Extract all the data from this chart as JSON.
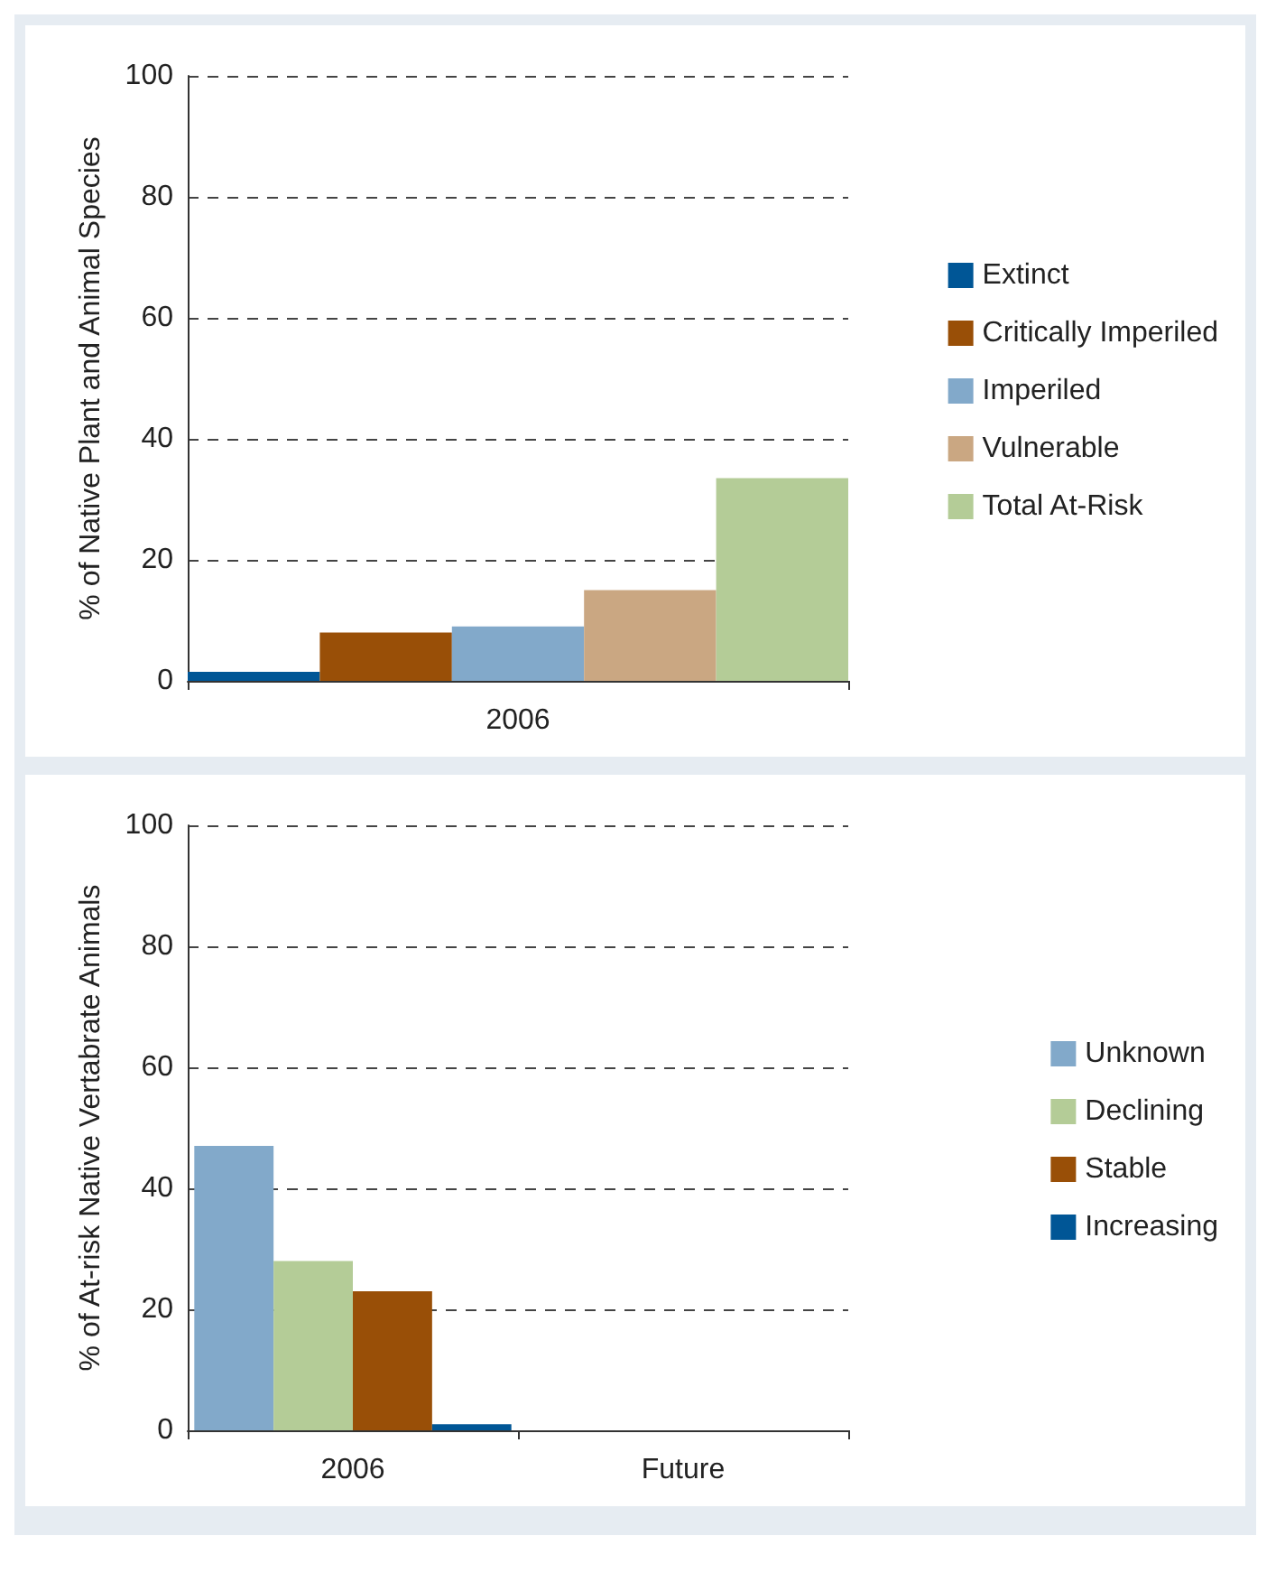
{
  "chart_data": [
    {
      "type": "bar",
      "ylabel": "% of Native Plant and Animal Species",
      "categories": [
        "2006"
      ],
      "ylim": [
        0,
        100
      ],
      "yticks": [
        0,
        20,
        40,
        60,
        80,
        100
      ],
      "grid": "y",
      "legend": "right",
      "series": [
        {
          "name": "Extinct",
          "color": "#005696",
          "values": [
            1.5
          ]
        },
        {
          "name": "Critically Imperiled",
          "color": "#994f07",
          "values": [
            8
          ]
        },
        {
          "name": "Imperiled",
          "color": "#82a9ca",
          "values": [
            9
          ]
        },
        {
          "name": "Vulnerable",
          "color": "#caa782",
          "values": [
            15
          ]
        },
        {
          "name": "Total At-Risk",
          "color": "#b4cc97",
          "values": [
            33.5
          ]
        }
      ]
    },
    {
      "type": "bar",
      "ylabel": "% of At-risk Native Vertabrate Animals",
      "categories": [
        "2006",
        "Future"
      ],
      "ylim": [
        0,
        100
      ],
      "yticks": [
        0,
        20,
        40,
        60,
        80,
        100
      ],
      "grid": "y",
      "legend": "right",
      "series": [
        {
          "name": "Unknown",
          "color": "#82a9ca",
          "values": [
            47,
            null
          ]
        },
        {
          "name": "Declining",
          "color": "#b4cc97",
          "values": [
            28,
            null
          ]
        },
        {
          "name": "Stable",
          "color": "#994f07",
          "values": [
            23,
            null
          ]
        },
        {
          "name": "Increasing",
          "color": "#005696",
          "values": [
            1,
            null
          ]
        }
      ]
    }
  ]
}
